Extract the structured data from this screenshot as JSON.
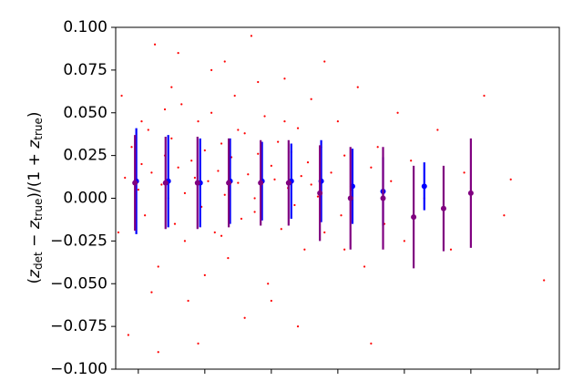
{
  "chart_data": {
    "type": "scatter",
    "ylabel": [
      {
        "text": "(",
        "kind": "plain"
      },
      {
        "text": "z",
        "kind": "italic"
      },
      {
        "text": "det",
        "kind": "sub"
      },
      {
        "text": " − ",
        "kind": "plain"
      },
      {
        "text": "z",
        "kind": "italic"
      },
      {
        "text": "true",
        "kind": "sub"
      },
      {
        "text": ")/(1 + ",
        "kind": "plain"
      },
      {
        "text": "z",
        "kind": "italic"
      },
      {
        "text": "true",
        "kind": "sub"
      },
      {
        "text": ")",
        "kind": "plain"
      }
    ],
    "xlim": [
      -0.34,
      6.33
    ],
    "xticks": [
      0,
      1,
      2,
      3,
      4,
      5,
      6
    ],
    "ylim": [
      -0.1,
      0.1
    ],
    "yticks": [
      {
        "value": -0.1,
        "label": "−0.100"
      },
      {
        "value": -0.075,
        "label": "−0.075"
      },
      {
        "value": -0.05,
        "label": "−0.050"
      },
      {
        "value": -0.025,
        "label": "−0.025"
      },
      {
        "value": 0,
        "label": "0.000"
      },
      {
        "value": 0.025,
        "label": "0.025"
      },
      {
        "value": 0.05,
        "label": "0.050"
      },
      {
        "value": 0.075,
        "label": "0.075"
      },
      {
        "value": 0.1,
        "label": "0.100"
      }
    ],
    "points": {
      "color": "#ff0000",
      "x": [
        -0.2,
        -0.1,
        -0.25,
        -0.3,
        0.0,
        0.05,
        0.1,
        0.15,
        0.2,
        0.25,
        0.3,
        0.35,
        0.4,
        0.45,
        0.5,
        0.55,
        0.6,
        0.65,
        0.7,
        0.75,
        0.8,
        0.85,
        0.9,
        0.95,
        1.0,
        1.05,
        1.1,
        1.15,
        1.2,
        1.25,
        1.3,
        1.35,
        1.4,
        1.45,
        1.5,
        1.55,
        1.6,
        1.65,
        1.7,
        1.75,
        1.8,
        1.85,
        1.9,
        1.95,
        2.0,
        2.05,
        2.1,
        2.15,
        2.2,
        2.25,
        2.3,
        2.35,
        2.4,
        2.45,
        2.5,
        2.55,
        2.6,
        2.7,
        2.75,
        2.8,
        2.9,
        3.0,
        3.05,
        3.1,
        3.2,
        3.3,
        3.4,
        3.5,
        3.6,
        3.7,
        3.8,
        3.9,
        4.0,
        4.1,
        4.3,
        4.5,
        4.7,
        4.9,
        5.2,
        5.5,
        5.6,
        6.1,
        -0.15,
        0.3,
        0.9,
        1.6,
        2.4,
        3.5,
        0.6,
        1.3,
        0.2,
        1.0,
        2.0,
        0.5,
        1.8,
        2.8,
        0.05,
        0.4,
        1.1,
        1.5,
        2.2,
        0.7,
        1.25,
        1.75,
        2.6,
        3.1
      ],
      "y": [
        0.012,
        0.03,
        0.06,
        -0.02,
        0.005,
        0.02,
        -0.01,
        0.04,
        0.015,
        0.09,
        -0.04,
        0.008,
        0.025,
        0.0,
        0.035,
        -0.015,
        0.018,
        0.055,
        0.003,
        -0.06,
        0.022,
        0.012,
        0.045,
        -0.005,
        0.028,
        0.01,
        0.075,
        -0.02,
        0.016,
        0.032,
        0.002,
        -0.035,
        0.024,
        0.06,
        0.009,
        -0.012,
        0.038,
        0.014,
        0.095,
        -0.008,
        0.026,
        0.004,
        0.048,
        -0.05,
        0.019,
        0.011,
        0.033,
        -0.018,
        0.07,
        0.006,
        0.027,
        -0.004,
        0.041,
        0.013,
        -0.03,
        0.021,
        0.058,
        0.001,
        0.03,
        -0.02,
        0.015,
        0.045,
        -0.01,
        0.025,
        0.005,
        0.065,
        -0.04,
        0.018,
        0.03,
        -0.015,
        0.01,
        0.05,
        -0.025,
        0.022,
        0.0,
        0.04,
        -0.03,
        0.015,
        0.06,
        -0.01,
        0.011,
        -0.048,
        -0.08,
        -0.09,
        -0.085,
        -0.07,
        -0.075,
        -0.085,
        0.085,
        0.08,
        -0.055,
        -0.045,
        -0.06,
        0.065,
        0.068,
        0.08,
        0.045,
        0.052,
        0.05,
        0.04,
        0.045,
        -0.025,
        -0.022,
        0.0,
        0.008,
        -0.03
      ]
    },
    "errorbars": [
      {
        "color": "#0000ff",
        "x": [
          -0.03,
          0.45,
          0.93,
          1.38,
          1.86,
          2.3,
          2.75,
          3.22,
          3.68,
          4.3
        ],
        "y": [
          0.01,
          0.01,
          0.009,
          0.01,
          0.01,
          0.01,
          0.01,
          0.007,
          0.004,
          0.007
        ],
        "err": [
          0.031,
          0.027,
          0.026,
          0.025,
          0.023,
          0.022,
          0.024,
          0.022,
          0.02,
          0.014
        ]
      },
      {
        "color": "#800080",
        "x": [
          -0.05,
          0.41,
          0.89,
          1.36,
          1.84,
          2.26,
          2.73,
          3.19,
          3.68,
          4.14,
          4.59,
          5.0
        ],
        "y": [
          0.009,
          0.009,
          0.009,
          0.009,
          0.009,
          0.009,
          0.003,
          0.0,
          0.0,
          -0.011,
          -0.006,
          0.003
        ],
        "err": [
          0.028,
          0.027,
          0.027,
          0.026,
          0.025,
          0.025,
          0.028,
          0.03,
          0.03,
          0.03,
          0.025,
          0.032
        ]
      }
    ]
  }
}
